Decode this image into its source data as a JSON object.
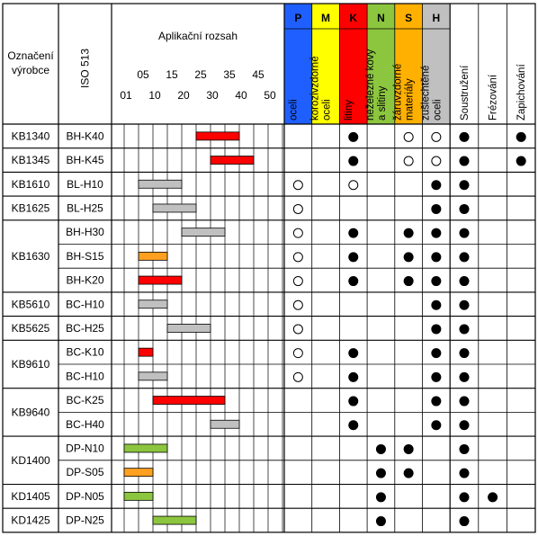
{
  "header": {
    "manufacturer_label": "Označení výrobce",
    "manufacturer_lines": [
      "Označení",
      "výrobce"
    ],
    "iso_label": "ISO 513",
    "range_label": "Aplikační rozsah",
    "scale_top": [
      "05",
      "15",
      "25",
      "35",
      "45"
    ],
    "scale_bottom": [
      "01",
      "10",
      "20",
      "30",
      "40",
      "50"
    ]
  },
  "groups": [
    {
      "letter": "P",
      "color": "#1f5fff",
      "text_color": "#000000",
      "label_lines": [
        "oceli"
      ]
    },
    {
      "letter": "M",
      "color": "#ffff00",
      "text_color": "#000000",
      "label_lines": [
        "korozivzdorné",
        "oceli"
      ]
    },
    {
      "letter": "K",
      "color": "#ff0000",
      "text_color": "#000000",
      "label_lines": [
        "litiny"
      ]
    },
    {
      "letter": "N",
      "color": "#8cc63f",
      "text_color": "#000000",
      "label_lines": [
        "neželezné kovy",
        "a slitiny"
      ]
    },
    {
      "letter": "S",
      "color": "#ffb000",
      "text_color": "#000000",
      "label_lines": [
        "žáruvzdorné",
        "materiály"
      ]
    },
    {
      "letter": "H",
      "color": "#c0c0c0",
      "text_color": "#000000",
      "label_lines": [
        "zušlechtěné",
        "oceli"
      ]
    }
  ],
  "operations": [
    {
      "label": "Soustružení"
    },
    {
      "label": "Frézování"
    },
    {
      "label": "Zapichování"
    }
  ],
  "rows": [
    {
      "product": "KB1340",
      "iso": "BH-K40",
      "range": [
        25,
        40
      ],
      "bar_color": "#ff0000",
      "materials": [
        "",
        "",
        "filled",
        "",
        "open",
        "open"
      ],
      "ops": [
        "filled",
        "",
        "filled"
      ]
    },
    {
      "product": "KB1345",
      "iso": "BH-K45",
      "range": [
        30,
        45
      ],
      "bar_color": "#ff0000",
      "materials": [
        "",
        "",
        "filled",
        "",
        "open",
        "open"
      ],
      "ops": [
        "filled",
        "",
        "filled"
      ]
    },
    {
      "product": "KB1610",
      "iso": "BL-H10",
      "range": [
        5,
        20
      ],
      "bar_color": "#c0c0c0",
      "materials": [
        "open",
        "",
        "open",
        "",
        "",
        "filled"
      ],
      "ops": [
        "filled",
        "",
        ""
      ]
    },
    {
      "product": "KB1625",
      "iso": "BL-H25",
      "range": [
        10,
        25
      ],
      "bar_color": "#c0c0c0",
      "materials": [
        "open",
        "",
        "",
        "",
        "",
        "filled"
      ],
      "ops": [
        "filled",
        "",
        ""
      ]
    },
    {
      "product": "KB1630",
      "iso": "BH-H30",
      "range": [
        20,
        35
      ],
      "bar_color": "#c0c0c0",
      "materials": [
        "open",
        "",
        "filled",
        "",
        "filled",
        "filled"
      ],
      "ops": [
        "filled",
        "",
        ""
      ]
    },
    {
      "product": "",
      "iso": "BH-S15",
      "range": [
        5,
        15
      ],
      "bar_color": "#ffa020",
      "materials": [
        "open",
        "",
        "filled",
        "",
        "filled",
        "filled"
      ],
      "ops": [
        "filled",
        "",
        ""
      ]
    },
    {
      "product": "",
      "iso": "BH-K20",
      "range": [
        5,
        20
      ],
      "bar_color": "#ff0000",
      "materials": [
        "open",
        "",
        "filled",
        "",
        "filled",
        "filled"
      ],
      "ops": [
        "filled",
        "",
        ""
      ]
    },
    {
      "product": "KB5610",
      "iso": "BC-H10",
      "range": [
        5,
        15
      ],
      "bar_color": "#c0c0c0",
      "materials": [
        "open",
        "",
        "",
        "",
        "",
        "filled"
      ],
      "ops": [
        "filled",
        "",
        ""
      ]
    },
    {
      "product": "KB5625",
      "iso": "BC-H25",
      "range": [
        15,
        30
      ],
      "bar_color": "#c0c0c0",
      "materials": [
        "open",
        "",
        "",
        "",
        "",
        "filled"
      ],
      "ops": [
        "filled",
        "",
        ""
      ]
    },
    {
      "product": "KB9610",
      "iso": "BC-K10",
      "range": [
        5,
        10
      ],
      "bar_color": "#ff0000",
      "materials": [
        "open",
        "",
        "filled",
        "",
        "",
        "filled"
      ],
      "ops": [
        "filled",
        "",
        ""
      ]
    },
    {
      "product": "",
      "iso": "BC-H10",
      "range": [
        5,
        15
      ],
      "bar_color": "#c0c0c0",
      "materials": [
        "open",
        "",
        "filled",
        "",
        "",
        "filled"
      ],
      "ops": [
        "filled",
        "",
        ""
      ]
    },
    {
      "product": "KB9640",
      "iso": "BC-K25",
      "range": [
        10,
        35
      ],
      "bar_color": "#ff0000",
      "materials": [
        "",
        "",
        "filled",
        "",
        "",
        "filled"
      ],
      "ops": [
        "filled",
        "",
        ""
      ]
    },
    {
      "product": "",
      "iso": "BC-H40",
      "range": [
        30,
        40
      ],
      "bar_color": "#c0c0c0",
      "materials": [
        "",
        "",
        "filled",
        "",
        "",
        "filled"
      ],
      "ops": [
        "filled",
        "",
        ""
      ]
    },
    {
      "product": "KD1400",
      "iso": "DP-N10",
      "range": [
        0,
        15
      ],
      "bar_color": "#8cc63f",
      "materials": [
        "",
        "",
        "",
        "filled",
        "filled",
        ""
      ],
      "ops": [
        "filled",
        "",
        ""
      ]
    },
    {
      "product": "",
      "iso": "DP-S05",
      "range": [
        0,
        10
      ],
      "bar_color": "#ffa020",
      "materials": [
        "",
        "",
        "",
        "filled",
        "filled",
        ""
      ],
      "ops": [
        "filled",
        "",
        ""
      ]
    },
    {
      "product": "KD1405",
      "iso": "DP-N05",
      "range": [
        0,
        10
      ],
      "bar_color": "#8cc63f",
      "materials": [
        "",
        "",
        "",
        "filled",
        "",
        ""
      ],
      "ops": [
        "filled",
        "filled",
        ""
      ]
    },
    {
      "product": "KD1425",
      "iso": "DP-N25",
      "range": [
        10,
        25
      ],
      "bar_color": "#8cc63f",
      "materials": [
        "",
        "",
        "",
        "filled",
        "",
        ""
      ],
      "ops": [
        "filled",
        "",
        ""
      ]
    }
  ]
}
